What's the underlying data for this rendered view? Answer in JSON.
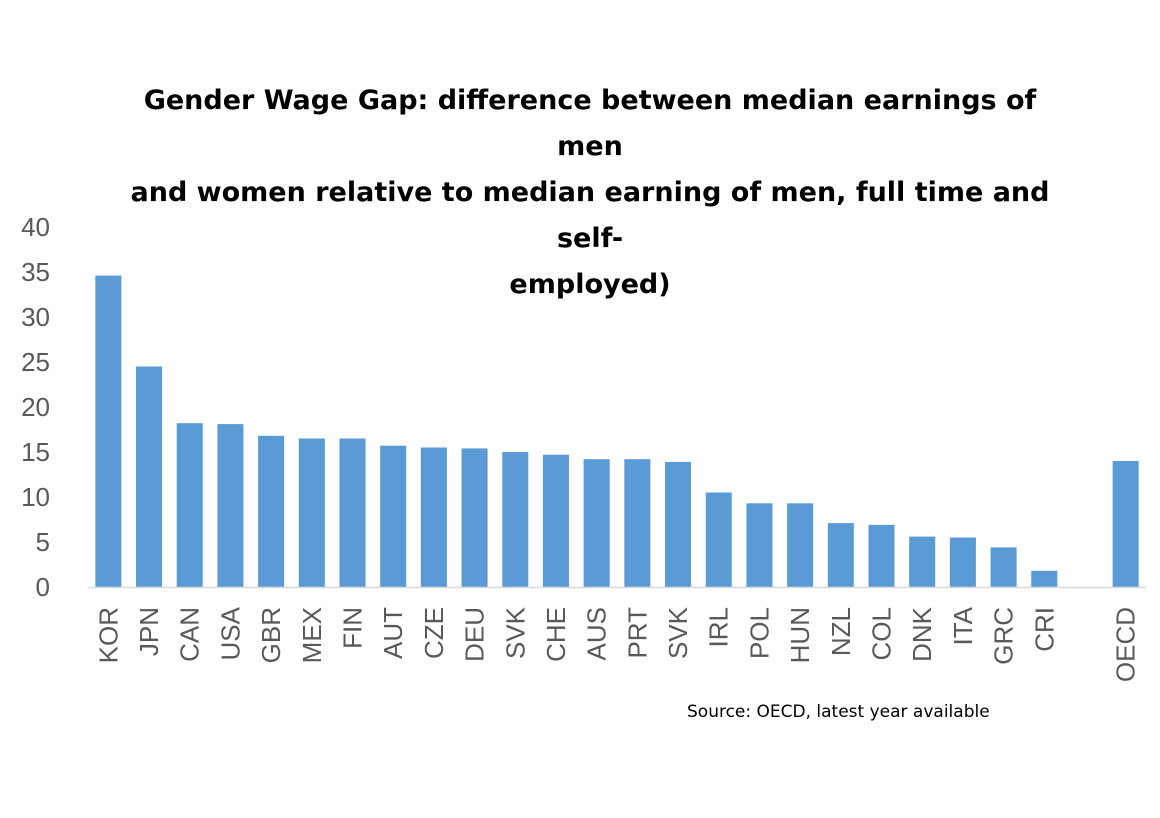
{
  "chart_data": {
    "type": "bar",
    "title": "Gender Wage Gap: difference between median earnings of men\nand women relative to median earning of men, full time and self-\nemployed)",
    "categories": [
      "KOR",
      "JPN",
      "CAN",
      "USA",
      "GBR",
      "MEX",
      "FIN",
      "AUT",
      "CZE",
      "DEU",
      "SVK",
      "CHE",
      "AUS",
      "PRT",
      "SVK",
      "IRL",
      "POL",
      "HUN",
      "NZL",
      "COL",
      "DNK",
      "ITA",
      "GRC",
      "CRI",
      "",
      "OECD"
    ],
    "values": [
      34.6,
      24.5,
      18.2,
      18.1,
      16.8,
      16.5,
      16.5,
      15.7,
      15.5,
      15.4,
      15.0,
      14.7,
      14.2,
      14.2,
      13.9,
      10.5,
      9.3,
      9.3,
      7.1,
      6.9,
      5.6,
      5.5,
      4.4,
      1.8,
      null,
      14.0
    ],
    "xlabel": "",
    "ylabel": "",
    "ylim": [
      0,
      40
    ],
    "yticks": [
      "0",
      "5",
      "10",
      "15",
      "20",
      "25",
      "30",
      "35",
      "40"
    ],
    "grid": false,
    "legend": "none",
    "bar_color": "#5b9bd5",
    "axis_color": "#d9d9d9",
    "tick_label_color": "#595959"
  },
  "source_note": "Source: OECD, latest year available"
}
